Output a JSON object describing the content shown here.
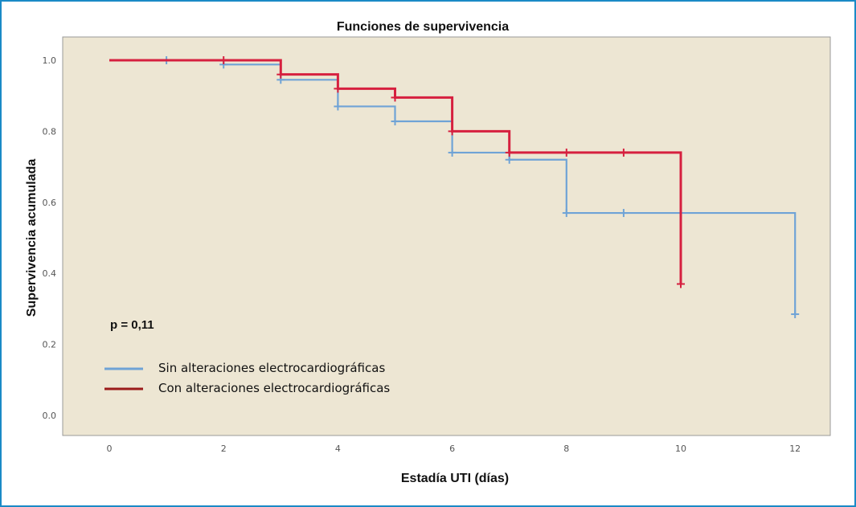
{
  "chart_data": {
    "type": "line",
    "subtype": "kaplan-meier step",
    "title": "Funciones de supervivencia",
    "xlabel": "Estadía UTI (días)",
    "ylabel": "Supervivencia acumulada",
    "xlim": [
      -0.6,
      12.6
    ],
    "ylim": [
      -0.06,
      1.06
    ],
    "xticks": [
      "0",
      "2",
      "4",
      "6",
      "8",
      "10",
      "12"
    ],
    "yticks": [
      "0.0",
      "0.2",
      "0.4",
      "0.6",
      "0.8",
      "1.0"
    ],
    "grid": false,
    "background": "#ede6d3",
    "annotation": "p = 0,11",
    "legend_position": "bottom-left",
    "series": [
      {
        "name": "Sin alteraciones electrocardiográficas",
        "color": "#6fa3d6",
        "steps": [
          [
            0,
            1.0
          ],
          [
            2,
            0.988
          ],
          [
            3,
            0.945
          ],
          [
            4,
            0.87
          ],
          [
            5,
            0.828
          ],
          [
            6,
            0.74
          ],
          [
            7,
            0.72
          ],
          [
            8,
            0.57
          ],
          [
            12,
            0.285
          ]
        ],
        "censored": [
          [
            1,
            1.0
          ],
          [
            2,
            0.988
          ],
          [
            3,
            0.945
          ],
          [
            4,
            0.87
          ],
          [
            5,
            0.828
          ],
          [
            6,
            0.74
          ],
          [
            7,
            0.72
          ],
          [
            8,
            0.57
          ],
          [
            9,
            0.57
          ],
          [
            12,
            0.285
          ]
        ]
      },
      {
        "name": "Con alteraciones electrocardiográficas",
        "color": "#d6203f",
        "legend_color": "#9b1b1b",
        "steps": [
          [
            0,
            1.0
          ],
          [
            3,
            0.96
          ],
          [
            4,
            0.92
          ],
          [
            5,
            0.895
          ],
          [
            6,
            0.8
          ],
          [
            7,
            0.74
          ],
          [
            10,
            0.37
          ]
        ],
        "censored": [
          [
            2,
            1.0
          ],
          [
            3,
            0.96
          ],
          [
            4,
            0.92
          ],
          [
            5,
            0.895
          ],
          [
            6,
            0.8
          ],
          [
            7,
            0.74
          ],
          [
            8,
            0.74
          ],
          [
            9,
            0.74
          ],
          [
            10,
            0.37
          ]
        ]
      }
    ]
  }
}
